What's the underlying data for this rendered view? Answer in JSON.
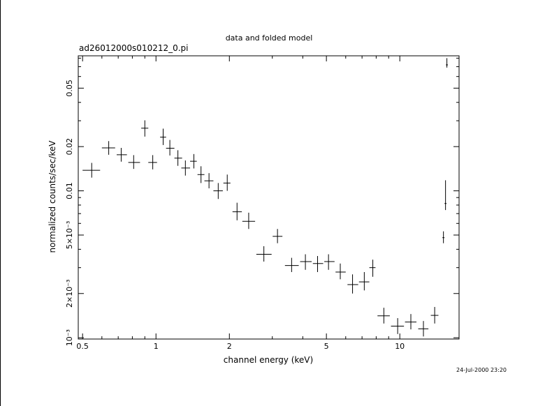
{
  "header": {
    "title": "data and folded model",
    "subtitle": "ad26012000s010212_0.pi",
    "timestamp": "24-Jul-2000 23:20"
  },
  "chart_data": {
    "type": "scatter",
    "title": "data and folded model",
    "subtitle": "ad26012000s010212_0.pi",
    "xlabel": "channel energy (keV)",
    "ylabel": "normalized counts/sec/keV",
    "xscale": "log",
    "yscale": "log",
    "xlim": [
      0.48,
      17.5
    ],
    "ylim": [
      0.00098,
      0.083
    ],
    "x_ticks": [
      {
        "value": 0.5,
        "label": "0.5"
      },
      {
        "value": 1,
        "label": "1"
      },
      {
        "value": 2,
        "label": "2"
      },
      {
        "value": 5,
        "label": "5"
      },
      {
        "value": 10,
        "label": "10"
      }
    ],
    "y_ticks": [
      {
        "value": 0.001,
        "label": "10⁻³"
      },
      {
        "value": 0.002,
        "label": "2×10⁻³"
      },
      {
        "value": 0.005,
        "label": "5×10⁻³"
      },
      {
        "value": 0.01,
        "label": "0.01"
      },
      {
        "value": 0.02,
        "label": "0.02"
      },
      {
        "value": 0.05,
        "label": "0.05"
      }
    ],
    "grid": false,
    "color": "#000000",
    "points": [
      {
        "x": 0.545,
        "xlo": 0.5,
        "xhi": 0.59,
        "y": 0.0138,
        "ylo": 0.0123,
        "yhi": 0.0155
      },
      {
        "x": 0.64,
        "xlo": 0.6,
        "xhi": 0.68,
        "y": 0.0196,
        "ylo": 0.0176,
        "yhi": 0.0218
      },
      {
        "x": 0.72,
        "xlo": 0.69,
        "xhi": 0.76,
        "y": 0.0176,
        "ylo": 0.0158,
        "yhi": 0.0196
      },
      {
        "x": 0.81,
        "xlo": 0.77,
        "xhi": 0.86,
        "y": 0.0156,
        "ylo": 0.0141,
        "yhi": 0.0175
      },
      {
        "x": 0.9,
        "xlo": 0.87,
        "xhi": 0.93,
        "y": 0.0267,
        "ylo": 0.0234,
        "yhi": 0.0302
      },
      {
        "x": 0.97,
        "xlo": 0.93,
        "xhi": 1.01,
        "y": 0.0156,
        "ylo": 0.014,
        "yhi": 0.0175
      },
      {
        "x": 1.07,
        "xlo": 1.04,
        "xhi": 1.1,
        "y": 0.0232,
        "ylo": 0.0205,
        "yhi": 0.0265
      },
      {
        "x": 1.14,
        "xlo": 1.1,
        "xhi": 1.19,
        "y": 0.0195,
        "ylo": 0.0174,
        "yhi": 0.0222
      },
      {
        "x": 1.23,
        "xlo": 1.19,
        "xhi": 1.28,
        "y": 0.0167,
        "ylo": 0.0148,
        "yhi": 0.0189
      },
      {
        "x": 1.32,
        "xlo": 1.27,
        "xhi": 1.38,
        "y": 0.0143,
        "ylo": 0.0127,
        "yhi": 0.0161
      },
      {
        "x": 1.43,
        "xlo": 1.38,
        "xhi": 1.47,
        "y": 0.0159,
        "ylo": 0.0142,
        "yhi": 0.0178
      },
      {
        "x": 1.53,
        "xlo": 1.48,
        "xhi": 1.58,
        "y": 0.0129,
        "ylo": 0.0113,
        "yhi": 0.0147
      },
      {
        "x": 1.65,
        "xlo": 1.58,
        "xhi": 1.72,
        "y": 0.0117,
        "ylo": 0.0104,
        "yhi": 0.0132
      },
      {
        "x": 1.8,
        "xlo": 1.72,
        "xhi": 1.88,
        "y": 0.01,
        "ylo": 0.0088,
        "yhi": 0.0113
      },
      {
        "x": 1.96,
        "xlo": 1.89,
        "xhi": 2.02,
        "y": 0.0113,
        "ylo": 0.01,
        "yhi": 0.0129
      },
      {
        "x": 2.15,
        "xlo": 2.06,
        "xhi": 2.25,
        "y": 0.0072,
        "ylo": 0.0063,
        "yhi": 0.0083
      },
      {
        "x": 2.4,
        "xlo": 2.26,
        "xhi": 2.55,
        "y": 0.0062,
        "ylo": 0.0055,
        "yhi": 0.0071
      },
      {
        "x": 2.77,
        "xlo": 2.58,
        "xhi": 2.98,
        "y": 0.0037,
        "ylo": 0.0033,
        "yhi": 0.0042
      },
      {
        "x": 3.15,
        "xlo": 3.01,
        "xhi": 3.3,
        "y": 0.0049,
        "ylo": 0.0044,
        "yhi": 0.0055
      },
      {
        "x": 3.6,
        "xlo": 3.38,
        "xhi": 3.85,
        "y": 0.0031,
        "ylo": 0.0028,
        "yhi": 0.0035
      },
      {
        "x": 4.1,
        "xlo": 3.9,
        "xhi": 4.35,
        "y": 0.0033,
        "ylo": 0.0029,
        "yhi": 0.0037
      },
      {
        "x": 4.6,
        "xlo": 4.4,
        "xhi": 4.85,
        "y": 0.0032,
        "ylo": 0.0028,
        "yhi": 0.0036
      },
      {
        "x": 5.1,
        "xlo": 4.9,
        "xhi": 5.4,
        "y": 0.0033,
        "ylo": 0.0029,
        "yhi": 0.0037
      },
      {
        "x": 5.7,
        "xlo": 5.45,
        "xhi": 6.0,
        "y": 0.0028,
        "ylo": 0.0025,
        "yhi": 0.0032
      },
      {
        "x": 6.4,
        "xlo": 6.1,
        "xhi": 6.75,
        "y": 0.0023,
        "ylo": 0.002,
        "yhi": 0.0027
      },
      {
        "x": 7.15,
        "xlo": 6.8,
        "xhi": 7.5,
        "y": 0.0024,
        "ylo": 0.0021,
        "yhi": 0.0028
      },
      {
        "x": 7.75,
        "xlo": 7.5,
        "xhi": 7.95,
        "y": 0.003,
        "ylo": 0.0026,
        "yhi": 0.0034
      },
      {
        "x": 8.6,
        "xlo": 8.1,
        "xhi": 9.1,
        "y": 0.00141,
        "ylo": 0.00125,
        "yhi": 0.0016
      },
      {
        "x": 9.8,
        "xlo": 9.2,
        "xhi": 10.4,
        "y": 0.0012,
        "ylo": 0.00106,
        "yhi": 0.00136
      },
      {
        "x": 11.1,
        "xlo": 10.5,
        "xhi": 11.7,
        "y": 0.00128,
        "ylo": 0.00114,
        "yhi": 0.00145
      },
      {
        "x": 12.5,
        "xlo": 11.9,
        "xhi": 13.1,
        "y": 0.00115,
        "ylo": 0.00102,
        "yhi": 0.0013
      },
      {
        "x": 13.9,
        "xlo": 13.4,
        "xhi": 14.4,
        "y": 0.00142,
        "ylo": 0.00125,
        "yhi": 0.00162
      },
      {
        "x": 15.1,
        "xlo": 14.95,
        "xhi": 15.25,
        "y": 0.0048,
        "ylo": 0.0044,
        "yhi": 0.0053
      },
      {
        "x": 15.4,
        "xlo": 15.25,
        "xhi": 15.55,
        "y": 0.0082,
        "ylo": 0.0074,
        "yhi": 0.0118
      },
      {
        "x": 15.6,
        "xlo": 15.45,
        "xhi": 15.75,
        "y": 0.072,
        "ylo": 0.069,
        "yhi": 0.08
      }
    ]
  }
}
